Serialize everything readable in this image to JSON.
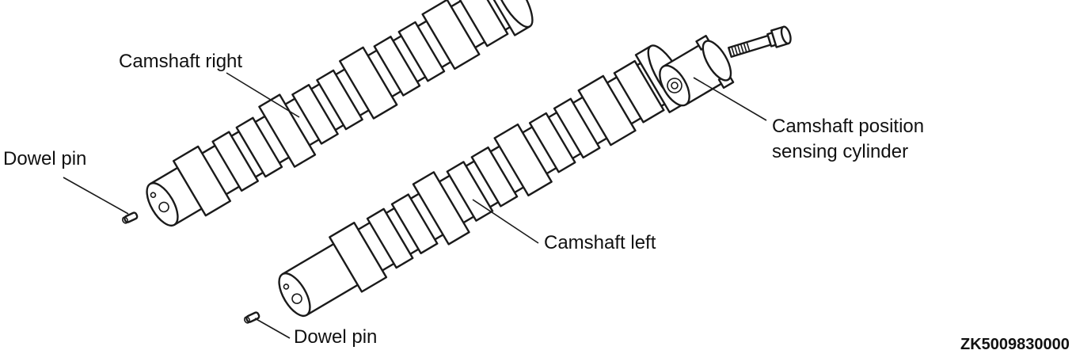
{
  "labels": {
    "camshaft_right": "Camshaft right",
    "dowel_pin_top": "Dowel pin",
    "camshaft_left": "Camshaft left",
    "sensor_line1": "Camshaft position",
    "sensor_line2": "sensing cylinder",
    "dowel_pin_bottom": "Dowel pin",
    "figure_code": "ZK5009830000"
  },
  "colors": {
    "ink": "#1a1a1a",
    "shade": "#cccccc",
    "background": "#ffffff"
  }
}
